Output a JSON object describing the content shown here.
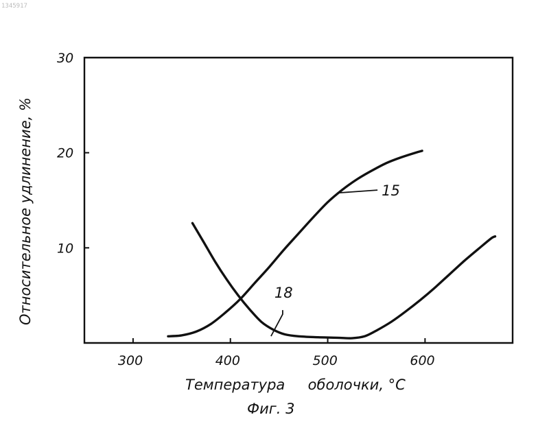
{
  "corner_mark": "1345917",
  "figure_caption": "Фиг. 3",
  "chart_data": {
    "type": "line",
    "xlabel": "Температура     оболочки, °С",
    "ylabel": "Относительное удлинение, %",
    "xlim": [
      250,
      690
    ],
    "ylim": [
      0,
      30
    ],
    "x_ticks": [
      300,
      400,
      500,
      600
    ],
    "x_tick_labels": [
      "300",
      "400",
      "500",
      "600"
    ],
    "y_ticks": [
      10,
      20,
      30
    ],
    "y_tick_labels": [
      "10",
      "20",
      "30"
    ],
    "grid": false,
    "legend": "none",
    "series": [
      {
        "name": "15",
        "label_at": [
          530,
          16.0
        ],
        "points": [
          [
            336,
            0.7
          ],
          [
            350,
            0.8
          ],
          [
            365,
            1.2
          ],
          [
            380,
            2.0
          ],
          [
            395,
            3.2
          ],
          [
            410,
            4.6
          ],
          [
            425,
            6.3
          ],
          [
            440,
            8.0
          ],
          [
            455,
            9.8
          ],
          [
            470,
            11.5
          ],
          [
            485,
            13.2
          ],
          [
            500,
            14.8
          ],
          [
            515,
            16.1
          ],
          [
            530,
            17.2
          ],
          [
            545,
            18.1
          ],
          [
            560,
            18.9
          ],
          [
            575,
            19.5
          ],
          [
            590,
            20.0
          ],
          [
            597,
            20.2
          ]
        ]
      },
      {
        "name": "18",
        "label_at": [
          465,
          1.0
        ],
        "points": [
          [
            361,
            12.6
          ],
          [
            372,
            10.7
          ],
          [
            384,
            8.6
          ],
          [
            396,
            6.7
          ],
          [
            408,
            5.0
          ],
          [
            420,
            3.5
          ],
          [
            432,
            2.2
          ],
          [
            444,
            1.4
          ],
          [
            456,
            0.9
          ],
          [
            470,
            0.7
          ],
          [
            490,
            0.6
          ],
          [
            510,
            0.55
          ],
          [
            525,
            0.5
          ],
          [
            538,
            0.7
          ],
          [
            550,
            1.3
          ],
          [
            565,
            2.2
          ],
          [
            580,
            3.3
          ],
          [
            595,
            4.5
          ],
          [
            610,
            5.8
          ],
          [
            625,
            7.2
          ],
          [
            640,
            8.6
          ],
          [
            655,
            9.9
          ],
          [
            668,
            11.0
          ],
          [
            672,
            11.2
          ]
        ]
      }
    ]
  }
}
